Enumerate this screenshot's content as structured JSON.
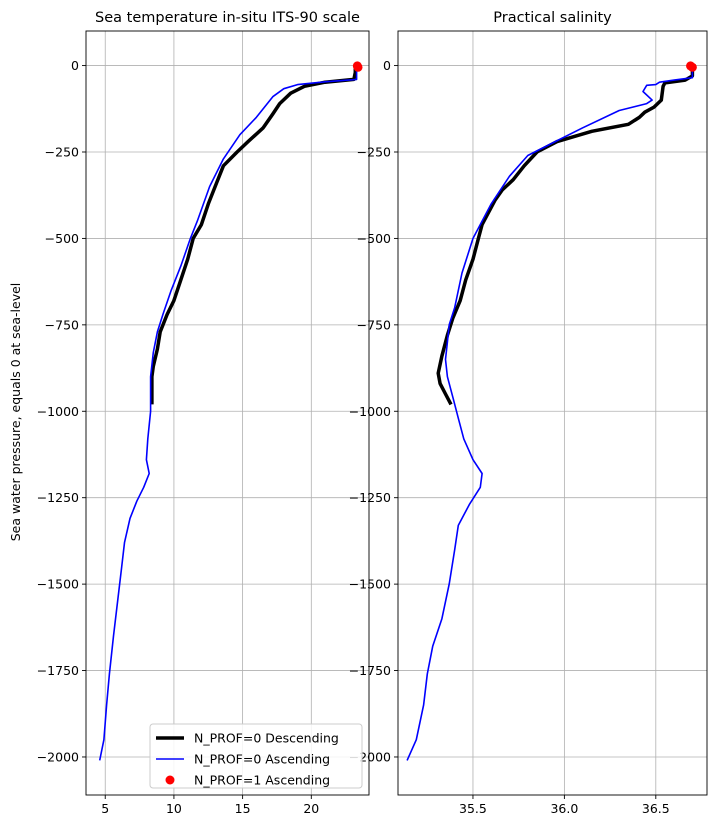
{
  "chart_data": [
    {
      "type": "line",
      "title": "Sea temperature in-situ ITS-90 scale",
      "ylabel": "Sea water pressure, equals 0 at sea-level",
      "xlabel": "",
      "xlim": [
        3.6,
        24.2
      ],
      "ylim": [
        -2110,
        100
      ],
      "xticks": [
        5,
        10,
        15,
        20
      ],
      "xtick_labels": [
        "5",
        "10",
        "15",
        "20"
      ],
      "yticks": [
        0,
        -250,
        -500,
        -750,
        -1000,
        -1250,
        -1500,
        -1750,
        -2000
      ],
      "ytick_labels": [
        "0",
        "−250",
        "−500",
        "−750",
        "−1000",
        "−1250",
        "−1500",
        "−1750",
        "−2000"
      ],
      "grid": true,
      "legend": {
        "placement": "lower-right",
        "entries": [
          "N_PROF=0 Descending",
          "N_PROF=0 Ascending",
          "N_PROF=1 Ascending"
        ]
      },
      "series": [
        {
          "name": "N_PROF=0 Descending",
          "style": "line",
          "color": "#000000",
          "points": [
            [
              23.2,
              -3
            ],
            [
              23.2,
              -20
            ],
            [
              23.1,
              -40
            ],
            [
              21.0,
              -48
            ],
            [
              19.5,
              -60
            ],
            [
              18.5,
              -80
            ],
            [
              17.7,
              -110
            ],
            [
              17.2,
              -140
            ],
            [
              16.5,
              -180
            ],
            [
              15.4,
              -220
            ],
            [
              14.6,
              -250
            ],
            [
              13.6,
              -290
            ],
            [
              13.1,
              -340
            ],
            [
              12.5,
              -400
            ],
            [
              12.0,
              -460
            ],
            [
              11.4,
              -500
            ],
            [
              11.0,
              -560
            ],
            [
              10.5,
              -620
            ],
            [
              10.0,
              -680
            ],
            [
              9.5,
              -720
            ],
            [
              9.0,
              -770
            ],
            [
              8.8,
              -820
            ],
            [
              8.5,
              -870
            ],
            [
              8.4,
              -900
            ],
            [
              8.4,
              -980
            ]
          ]
        },
        {
          "name": "N_PROF=0 Ascending",
          "style": "line",
          "color": "#0000ff",
          "points": [
            [
              23.3,
              -3
            ],
            [
              23.3,
              -20
            ],
            [
              23.3,
              -40
            ],
            [
              21.0,
              -47
            ],
            [
              19.0,
              -55
            ],
            [
              18.0,
              -67
            ],
            [
              17.2,
              -90
            ],
            [
              16.8,
              -110
            ],
            [
              16.0,
              -150
            ],
            [
              14.8,
              -200
            ],
            [
              13.6,
              -270
            ],
            [
              12.6,
              -350
            ],
            [
              11.7,
              -450
            ],
            [
              11.2,
              -500
            ],
            [
              10.5,
              -580
            ],
            [
              9.8,
              -650
            ],
            [
              9.2,
              -720
            ],
            [
              8.8,
              -770
            ],
            [
              8.5,
              -830
            ],
            [
              8.3,
              -900
            ],
            [
              8.3,
              -1000
            ],
            [
              8.1,
              -1080
            ],
            [
              8.0,
              -1140
            ],
            [
              8.2,
              -1180
            ],
            [
              7.8,
              -1220
            ],
            [
              7.3,
              -1260
            ],
            [
              6.8,
              -1310
            ],
            [
              6.4,
              -1380
            ],
            [
              6.2,
              -1450
            ],
            [
              5.9,
              -1550
            ],
            [
              5.6,
              -1650
            ],
            [
              5.3,
              -1760
            ],
            [
              5.1,
              -1850
            ],
            [
              4.9,
              -1950
            ],
            [
              4.6,
              -2010
            ]
          ]
        },
        {
          "name": "N_PROF=1 Ascending",
          "style": "marker",
          "color": "#ff0000",
          "points": [
            [
              23.35,
              -1
            ],
            [
              23.4,
              -5
            ]
          ]
        }
      ]
    },
    {
      "type": "line",
      "title": "Practical salinity",
      "xlabel": "",
      "ylabel": "",
      "xlim": [
        35.09,
        36.78
      ],
      "ylim": [
        -2110,
        100
      ],
      "xticks": [
        35.5,
        36.0,
        36.5
      ],
      "xtick_labels": [
        "35.5",
        "36.0",
        "36.5"
      ],
      "yticks": [
        0,
        -250,
        -500,
        -750,
        -1000,
        -1250,
        -1500,
        -1750,
        -2000
      ],
      "ytick_labels": [
        "0",
        "−250",
        "−500",
        "−750",
        "−1000",
        "−1250",
        "−1500",
        "−1750",
        "−2000"
      ],
      "grid": true,
      "series": [
        {
          "name": "N_PROF=0 Descending",
          "style": "line",
          "color": "#000000",
          "points": [
            [
              36.7,
              -3
            ],
            [
              36.7,
              -30
            ],
            [
              36.66,
              -42
            ],
            [
              36.55,
              -50
            ],
            [
              36.54,
              -60
            ],
            [
              36.53,
              -100
            ],
            [
              36.49,
              -120
            ],
            [
              36.44,
              -135
            ],
            [
              36.41,
              -150
            ],
            [
              36.35,
              -170
            ],
            [
              36.15,
              -190
            ],
            [
              35.96,
              -220
            ],
            [
              35.85,
              -250
            ],
            [
              35.78,
              -290
            ],
            [
              35.72,
              -330
            ],
            [
              35.66,
              -360
            ],
            [
              35.62,
              -390
            ],
            [
              35.55,
              -460
            ],
            [
              35.53,
              -500
            ],
            [
              35.5,
              -560
            ],
            [
              35.46,
              -620
            ],
            [
              35.43,
              -680
            ],
            [
              35.39,
              -730
            ],
            [
              35.36,
              -780
            ],
            [
              35.33,
              -840
            ],
            [
              35.31,
              -890
            ],
            [
              35.32,
              -920
            ],
            [
              35.35,
              -950
            ],
            [
              35.38,
              -980
            ]
          ]
        },
        {
          "name": "N_PROF=0 Ascending",
          "style": "line",
          "color": "#0000ff",
          "points": [
            [
              36.7,
              -3
            ],
            [
              36.7,
              -35
            ],
            [
              36.6,
              -42
            ],
            [
              36.52,
              -48
            ],
            [
              36.5,
              -55
            ],
            [
              36.45,
              -57
            ],
            [
              36.43,
              -75
            ],
            [
              36.48,
              -100
            ],
            [
              36.45,
              -110
            ],
            [
              36.3,
              -130
            ],
            [
              36.1,
              -180
            ],
            [
              35.95,
              -220
            ],
            [
              35.8,
              -260
            ],
            [
              35.7,
              -320
            ],
            [
              35.6,
              -400
            ],
            [
              35.5,
              -500
            ],
            [
              35.44,
              -600
            ],
            [
              35.4,
              -700
            ],
            [
              35.37,
              -750
            ],
            [
              35.36,
              -800
            ],
            [
              35.35,
              -850
            ],
            [
              35.36,
              -900
            ],
            [
              35.39,
              -960
            ],
            [
              35.42,
              -1020
            ],
            [
              35.45,
              -1080
            ],
            [
              35.5,
              -1140
            ],
            [
              35.55,
              -1180
            ],
            [
              35.54,
              -1220
            ],
            [
              35.48,
              -1270
            ],
            [
              35.42,
              -1330
            ],
            [
              35.4,
              -1400
            ],
            [
              35.37,
              -1500
            ],
            [
              35.33,
              -1600
            ],
            [
              35.28,
              -1680
            ],
            [
              35.25,
              -1760
            ],
            [
              35.23,
              -1850
            ],
            [
              35.19,
              -1950
            ],
            [
              35.14,
              -2010
            ]
          ]
        },
        {
          "name": "N_PROF=1 Ascending",
          "style": "marker",
          "color": "#ff0000",
          "points": [
            [
              36.69,
              -1
            ],
            [
              36.7,
              -5
            ]
          ]
        }
      ]
    }
  ]
}
